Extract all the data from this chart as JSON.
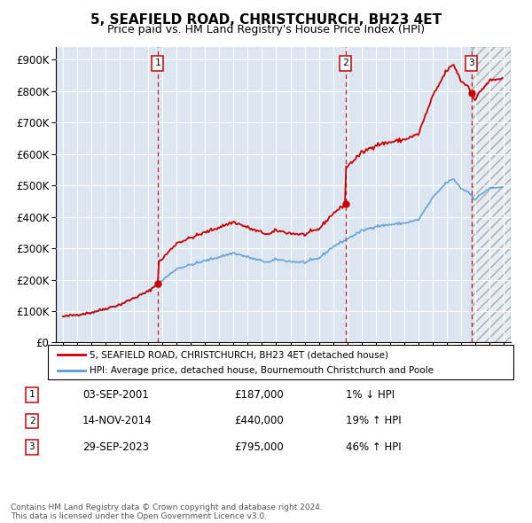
{
  "title": "5, SEAFIELD ROAD, CHRISTCHURCH, BH23 4ET",
  "subtitle": "Price paid vs. HM Land Registry's House Price Index (HPI)",
  "legend_line1": "5, SEAFIELD ROAD, CHRISTCHURCH, BH23 4ET (detached house)",
  "legend_line2": "HPI: Average price, detached house, Bournemouth Christchurch and Poole",
  "footer1": "Contains HM Land Registry data © Crown copyright and database right 2024.",
  "footer2": "This data is licensed under the Open Government Licence v3.0.",
  "sales": [
    {
      "num": 1,
      "date": "03-SEP-2001",
      "price": 187000,
      "year": 2001.67,
      "hpi_pct": "1% ↓ HPI"
    },
    {
      "num": 2,
      "date": "14-NOV-2014",
      "price": 440000,
      "year": 2014.87,
      "hpi_pct": "19% ↑ HPI"
    },
    {
      "num": 3,
      "date": "29-SEP-2023",
      "price": 795000,
      "year": 2023.75,
      "hpi_pct": "46% ↑ HPI"
    }
  ],
  "ylim": [
    0,
    940000
  ],
  "xlim": [
    1994.5,
    2026.5
  ],
  "background_color": "#dce6f1",
  "red_color": "#cc0000",
  "blue_color": "#5b9bd5",
  "grid_color": "#ffffff",
  "title_fontsize": 11,
  "subtitle_fontsize": 9
}
